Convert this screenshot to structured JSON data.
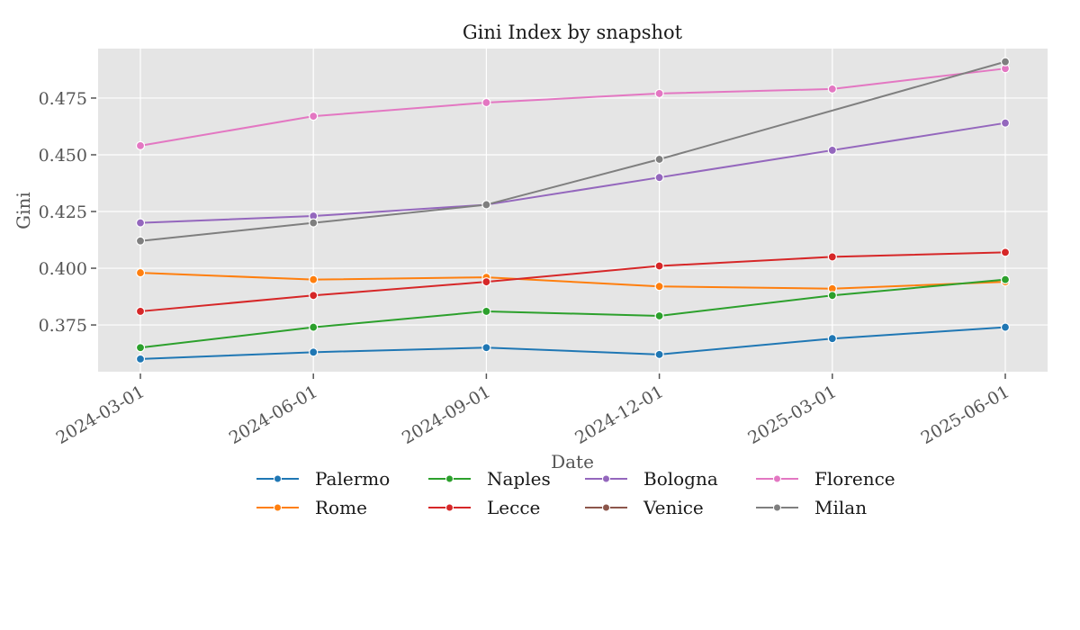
{
  "chart_data": {
    "type": "line",
    "title": "Gini Index by snapshot",
    "xlabel": "Date",
    "ylabel": "Gini",
    "x": [
      "2024-03-01",
      "2024-06-01",
      "2024-09-01",
      "2024-12-01",
      "2025-03-01",
      "2025-06-01"
    ],
    "yticks": [
      0.375,
      0.4,
      0.425,
      0.45,
      0.475
    ],
    "ytick_labels": [
      "0.375",
      "0.400",
      "0.425",
      "0.450",
      "0.475"
    ],
    "ylim": [
      0.3544,
      0.4968
    ],
    "grid": true,
    "legend_position": "bottom-center, outside, 4 columns",
    "series": [
      {
        "name": "Palermo",
        "color": "#1f77b4",
        "values": [
          0.36,
          0.363,
          0.365,
          0.362,
          0.369,
          0.374
        ]
      },
      {
        "name": "Rome",
        "color": "#ff7f0e",
        "values": [
          0.398,
          0.395,
          0.396,
          0.392,
          0.391,
          0.394
        ]
      },
      {
        "name": "Naples",
        "color": "#2ca02c",
        "values": [
          0.365,
          0.374,
          0.381,
          0.379,
          0.388,
          0.395
        ]
      },
      {
        "name": "Lecce",
        "color": "#d62728",
        "values": [
          0.381,
          0.388,
          0.394,
          0.401,
          0.405,
          0.407
        ]
      },
      {
        "name": "Bologna",
        "color": "#9467bd",
        "values": [
          0.42,
          0.423,
          0.428,
          0.44,
          0.452,
          0.464
        ]
      },
      {
        "name": "Venice",
        "color": "#8c564b",
        "values": [
          null,
          null,
          null,
          null,
          null,
          null
        ]
      },
      {
        "name": "Florence",
        "color": "#e377c2",
        "values": [
          0.454,
          0.467,
          0.473,
          0.477,
          0.479,
          0.488
        ]
      },
      {
        "name": "Milan",
        "color": "#7f7f7f",
        "values": [
          0.412,
          0.42,
          0.428,
          0.448,
          null,
          0.491
        ]
      }
    ]
  },
  "legend": {
    "columns": [
      [
        "Palermo",
        "Rome"
      ],
      [
        "Naples",
        "Lecce"
      ],
      [
        "Bologna",
        "Venice"
      ],
      [
        "Florence",
        "Milan"
      ]
    ]
  },
  "style": {
    "plot_background": "#e5e5e5",
    "grid_color": "#ffffff",
    "text_color": "#555555"
  }
}
